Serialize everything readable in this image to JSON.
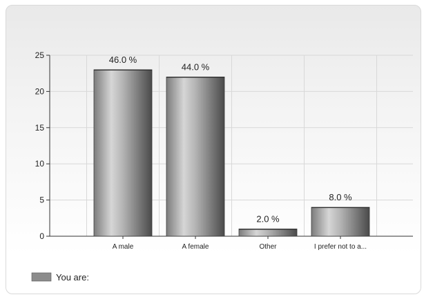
{
  "chart_data": {
    "type": "bar",
    "categories": [
      "A male",
      "A female",
      "Other",
      "I prefer not to a..."
    ],
    "series": [
      {
        "name": "You are:",
        "values": [
          23,
          22,
          1,
          4
        ],
        "labels": [
          "46.0 %",
          "44.0 %",
          "2.0 %",
          "8.0 %"
        ]
      }
    ],
    "yticks": [
      0,
      5,
      10,
      15,
      20,
      25
    ],
    "ylim": [
      0,
      25
    ],
    "grid": true,
    "legend_position": "bottom-left",
    "colors": {
      "bar_light": "#e2e2e2",
      "bar_mid": "#a8a8a8",
      "bar_dark": "#4a4a4a",
      "grid": "#d8d8d8",
      "axis": "#333333",
      "legend_swatch": "#8c8c8c"
    }
  }
}
